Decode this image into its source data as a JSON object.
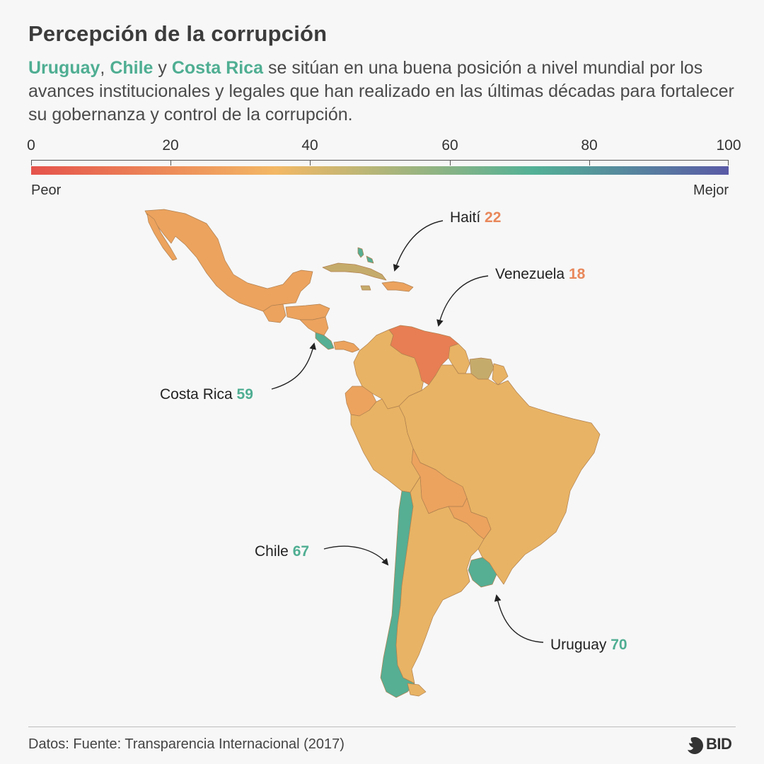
{
  "title": "Percepción de la corrupción",
  "subtitle": {
    "highlight_1": "Uruguay",
    "sep_1": ", ",
    "highlight_2": "Chile",
    "sep_2": " y ",
    "highlight_3": "Costa Rica",
    "rest": " se sitúan en una buena posición a nivel mundial por los avances institucionales y legales que han realizado en las últimas décadas para fortalecer su gobernanza y control de la corrupción."
  },
  "scale": {
    "ticks": [
      "0",
      "20",
      "40",
      "60",
      "80",
      "100"
    ],
    "min": 0,
    "max": 100,
    "left_label": "Peor",
    "right_label": "Mejor",
    "colors": [
      "#e5534b",
      "#f3b865",
      "#53b196",
      "#5a5aa6"
    ]
  },
  "callouts": {
    "haiti": {
      "name": "Haití",
      "value": "22"
    },
    "venezuela": {
      "name": "Venezuela",
      "value": "18"
    },
    "costa_rica": {
      "name": "Costa Rica",
      "value": "59"
    },
    "chile": {
      "name": "Chile",
      "value": "67"
    },
    "uruguay": {
      "name": "Uruguay",
      "value": "70"
    }
  },
  "map_colors": {
    "low": "#e87e53",
    "orange": "#eca35e",
    "mid": "#e8b364",
    "olive": "#c5ab6b",
    "green": "#56ae93"
  },
  "footer": {
    "source": "Datos: Fuente: Transparencia Internacional (2017)",
    "logo": "BID"
  }
}
